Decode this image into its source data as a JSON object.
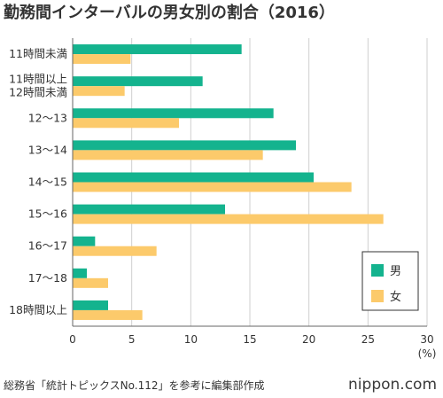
{
  "chart_data": {
    "type": "bar",
    "orientation": "horizontal",
    "title": "勤務間インターバルの男女別の割合（2016）",
    "categories": [
      "11時間未満",
      "11時間以上\n12時間未満",
      "12〜13",
      "13〜14",
      "14〜15",
      "15〜16",
      "16〜17",
      "17〜18",
      "18時間以上"
    ],
    "series": [
      {
        "name": "男",
        "color": "#14b38e",
        "values": [
          14.3,
          11.0,
          17.0,
          18.9,
          20.4,
          12.9,
          1.9,
          1.2,
          3.0
        ]
      },
      {
        "name": "女",
        "color": "#fcca6b",
        "values": [
          4.9,
          4.4,
          9.0,
          16.1,
          23.6,
          26.3,
          7.1,
          3.0,
          5.9
        ]
      }
    ],
    "xlim": [
      0,
      30
    ],
    "xticks": [
      0,
      5,
      10,
      15,
      20,
      25,
      30
    ],
    "x_unit": "(%)",
    "legend_position": "bottom-right",
    "grid": true
  },
  "footer": {
    "source": "総務省「統計トピックスNo.112」を参考に編集部作成",
    "site": "nippon.com"
  }
}
